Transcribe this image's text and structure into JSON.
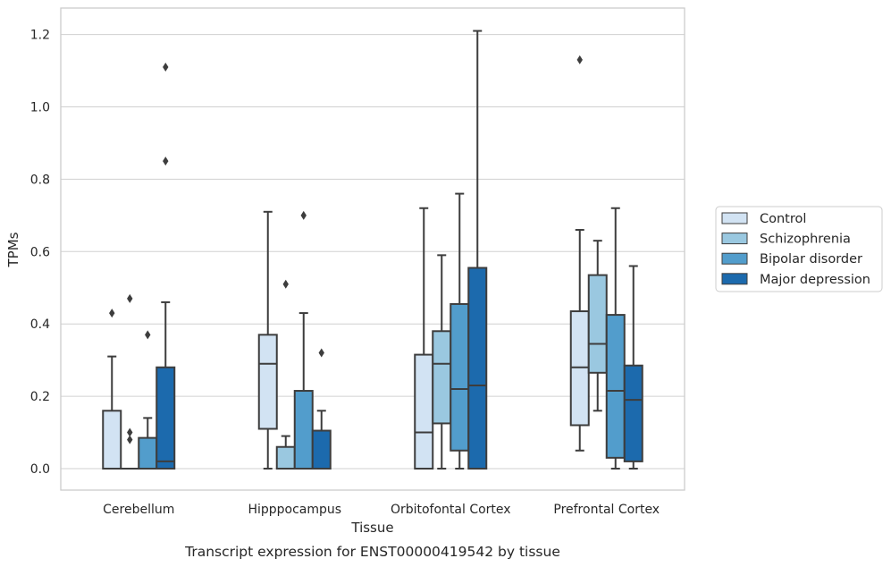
{
  "caption": "Transcript expression for ENST00000419542 by tissue",
  "chart_data": {
    "type": "box",
    "title": "",
    "xlabel": "Tissue",
    "ylabel": "TPMs",
    "ylim": [
      -0.06,
      1.27
    ],
    "yticks": [
      0.0,
      0.2,
      0.4,
      0.6,
      0.8,
      1.0,
      1.2
    ],
    "ytick_labels": [
      "0.0",
      "0.2",
      "0.4",
      "0.6",
      "0.8",
      "1.0",
      "1.2"
    ],
    "grid": "horizontal",
    "legend_position": "right",
    "categories": [
      "Cerebellum",
      "Hipppocampus",
      "Orbitofontal Cortex",
      "Prefrontal Cortex"
    ],
    "series": [
      {
        "name": "Control",
        "color": "#d2e3f3",
        "boxes": [
          {
            "category": "Cerebellum",
            "whisker_low": 0.0,
            "q1": 0.0,
            "median": 0.0,
            "q3": 0.16,
            "whisker_high": 0.31,
            "outliers": [
              0.43
            ]
          },
          {
            "category": "Hipppocampus",
            "whisker_low": 0.0,
            "q1": 0.11,
            "median": 0.29,
            "q3": 0.37,
            "whisker_high": 0.71,
            "outliers": []
          },
          {
            "category": "Orbitofontal Cortex",
            "whisker_low": 0.0,
            "q1": 0.0,
            "median": 0.1,
            "q3": 0.315,
            "whisker_high": 0.72,
            "outliers": []
          },
          {
            "category": "Prefrontal Cortex",
            "whisker_low": 0.05,
            "q1": 0.12,
            "median": 0.28,
            "q3": 0.435,
            "whisker_high": 0.66,
            "outliers": [
              1.13
            ]
          }
        ]
      },
      {
        "name": "Schizophrenia",
        "color": "#9ac8e0",
        "boxes": [
          {
            "category": "Cerebellum",
            "whisker_low": 0.0,
            "q1": 0.0,
            "median": 0.0,
            "q3": 0.0,
            "whisker_high": 0.0,
            "outliers": [
              0.08,
              0.1,
              0.47
            ]
          },
          {
            "category": "Hipppocampus",
            "whisker_low": 0.0,
            "q1": 0.0,
            "median": 0.0,
            "q3": 0.06,
            "whisker_high": 0.09,
            "outliers": [
              0.51
            ]
          },
          {
            "category": "Orbitofontal Cortex",
            "whisker_low": 0.0,
            "q1": 0.125,
            "median": 0.29,
            "q3": 0.38,
            "whisker_high": 0.59,
            "outliers": []
          },
          {
            "category": "Prefrontal Cortex",
            "whisker_low": 0.16,
            "q1": 0.265,
            "median": 0.345,
            "q3": 0.535,
            "whisker_high": 0.63,
            "outliers": []
          }
        ]
      },
      {
        "name": "Bipolar disorder",
        "color": "#529dcc",
        "boxes": [
          {
            "category": "Cerebellum",
            "whisker_low": 0.0,
            "q1": 0.0,
            "median": 0.0,
            "q3": 0.085,
            "whisker_high": 0.14,
            "outliers": [
              0.37
            ]
          },
          {
            "category": "Hipppocampus",
            "whisker_low": 0.0,
            "q1": 0.0,
            "median": 0.0,
            "q3": 0.215,
            "whisker_high": 0.43,
            "outliers": [
              0.7
            ]
          },
          {
            "category": "Orbitofontal Cortex",
            "whisker_low": 0.0,
            "q1": 0.05,
            "median": 0.22,
            "q3": 0.455,
            "whisker_high": 0.76,
            "outliers": []
          },
          {
            "category": "Prefrontal Cortex",
            "whisker_low": 0.0,
            "q1": 0.03,
            "median": 0.215,
            "q3": 0.425,
            "whisker_high": 0.72,
            "outliers": []
          }
        ]
      },
      {
        "name": "Major depression",
        "color": "#1c6aad",
        "boxes": [
          {
            "category": "Cerebellum",
            "whisker_low": 0.0,
            "q1": 0.0,
            "median": 0.02,
            "q3": 0.28,
            "whisker_high": 0.46,
            "outliers": [
              0.85,
              1.11
            ]
          },
          {
            "category": "Hipppocampus",
            "whisker_low": 0.0,
            "q1": 0.0,
            "median": 0.0,
            "q3": 0.105,
            "whisker_high": 0.16,
            "outliers": [
              0.32
            ]
          },
          {
            "category": "Orbitofontal Cortex",
            "whisker_low": 0.0,
            "q1": 0.0,
            "median": 0.23,
            "q3": 0.555,
            "whisker_high": 1.21,
            "outliers": []
          },
          {
            "category": "Prefrontal Cortex",
            "whisker_low": 0.0,
            "q1": 0.02,
            "median": 0.19,
            "q3": 0.285,
            "whisker_high": 0.56,
            "outliers": []
          }
        ]
      }
    ]
  }
}
